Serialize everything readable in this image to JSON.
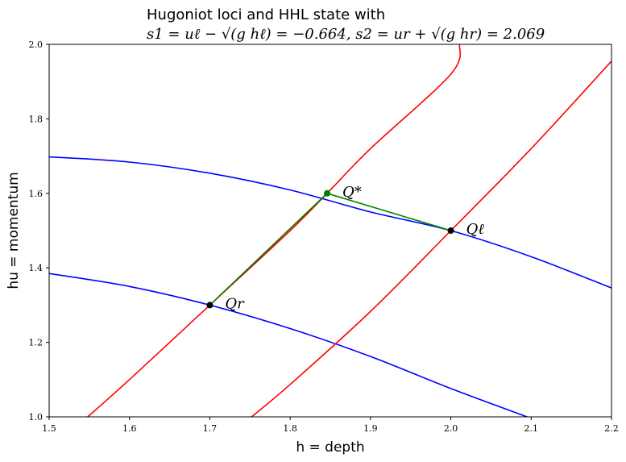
{
  "chart_data": {
    "type": "line",
    "title": "Hugoniot loci and HHL state with",
    "subtitle": "s1 = uℓ − √(g hℓ) = −0.664,   s2 = ur + √(g hr) = 2.069",
    "xlabel": "h = depth",
    "ylabel": "hu = momentum",
    "xlim": [
      1.5,
      2.2
    ],
    "ylim": [
      1.0,
      2.0
    ],
    "xticks": [
      1.5,
      1.6,
      1.7,
      1.8,
      1.9,
      2.0,
      2.1,
      2.2
    ],
    "yticks": [
      1.0,
      1.2,
      1.4,
      1.6,
      1.8,
      2.0
    ],
    "xtick_labels": [
      "1.5",
      "1.6",
      "1.7",
      "1.8",
      "1.9",
      "2.0",
      "2.1",
      "2.2"
    ],
    "ytick_labels": [
      "1.0",
      "1.2",
      "1.4",
      "1.6",
      "1.8",
      "2.0"
    ],
    "grid": false,
    "series": [
      {
        "color": "#0000ff",
        "kind": "curve",
        "points": [
          [
            1.5,
            1.698
          ],
          [
            1.6,
            1.684
          ],
          [
            1.7,
            1.654
          ],
          [
            1.8,
            1.609
          ],
          [
            1.9,
            1.55
          ],
          [
            2.0,
            1.5
          ],
          [
            2.1,
            1.43
          ],
          [
            2.2,
            1.346
          ]
        ]
      },
      {
        "color": "#0000ff",
        "kind": "curve",
        "points": [
          [
            1.5,
            1.385
          ],
          [
            1.6,
            1.35
          ],
          [
            1.7,
            1.3
          ],
          [
            1.8,
            1.237
          ],
          [
            1.9,
            1.162
          ],
          [
            2.0,
            1.076
          ],
          [
            2.095,
            1.0
          ]
        ]
      },
      {
        "color": "#ff0000",
        "kind": "curve",
        "points": [
          [
            1.548,
            1.0
          ],
          [
            1.6,
            1.1
          ],
          [
            1.7,
            1.3
          ],
          [
            1.8,
            1.5
          ],
          [
            1.846,
            1.6
          ],
          [
            1.9,
            1.72
          ],
          [
            2.0,
            1.92
          ],
          [
            2.011,
            2.0
          ]
        ]
      },
      {
        "color": "#ff0000",
        "kind": "curve",
        "points": [
          [
            1.752,
            1.0
          ],
          [
            1.8,
            1.087
          ],
          [
            1.9,
            1.283
          ],
          [
            2.0,
            1.5
          ],
          [
            2.1,
            1.72
          ],
          [
            2.2,
            1.955
          ]
        ]
      },
      {
        "color": "#008000",
        "kind": "segment",
        "points": [
          [
            1.7,
            1.3
          ],
          [
            1.846,
            1.6
          ],
          [
            2.0,
            1.5
          ]
        ]
      }
    ],
    "markers": [
      {
        "x": 1.7,
        "y": 1.3,
        "label": "Qr",
        "color": "#000000"
      },
      {
        "x": 2.0,
        "y": 1.5,
        "label": "Qℓ",
        "color": "#000000"
      },
      {
        "x": 1.846,
        "y": 1.6,
        "label": "Q*",
        "color": "#008000"
      }
    ]
  }
}
